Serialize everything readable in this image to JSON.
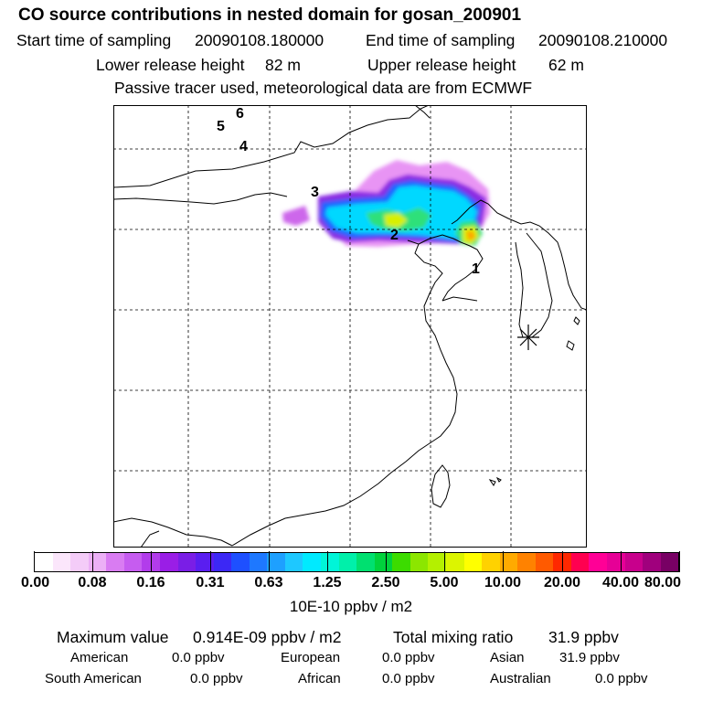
{
  "title": "CO  source contributions in nested domain for gosan_200901",
  "header": {
    "start_label": "Start time of sampling",
    "start_value": "20090108.180000",
    "end_label": "End time of sampling",
    "end_value": "20090108.210000",
    "lower_label": "Lower release height",
    "lower_value": "82 m",
    "upper_label": "Upper release height",
    "upper_value": "62 m",
    "note": "Passive tracer used, meteorological data are from ECMWF"
  },
  "map": {
    "release_point_labels": [
      "1",
      "2",
      "3",
      "4",
      "5",
      "6"
    ],
    "receptor_marker": "asterisk",
    "colors": {
      "coast": "#000000",
      "grid": "#000000",
      "plume_outer": "#e070f0",
      "plume_mid": "#8a2be2",
      "plume_blue": "#1e64ff",
      "plume_cyan": "#00d8ff",
      "plume_green": "#2ee07a",
      "plume_yellow": "#d8f000",
      "plume_orange": "#ffa500"
    }
  },
  "colorbar": {
    "colors": [
      "#ffffff",
      "#fbe6fb",
      "#f4ccf8",
      "#ecb0f6",
      "#d97cf2",
      "#c65cf0",
      "#b23ceb",
      "#9a1ee6",
      "#7a1ee6",
      "#5a1ef0",
      "#3c28f5",
      "#1e50ff",
      "#1e78ff",
      "#1ea0ff",
      "#1ec8ff",
      "#00eaff",
      "#00f5d8",
      "#00f0aa",
      "#00e070",
      "#00d23c",
      "#3cdc00",
      "#8ce600",
      "#b4f000",
      "#dcf500",
      "#ffff00",
      "#ffd200",
      "#ffaa00",
      "#ff8200",
      "#ff5a00",
      "#ff2800",
      "#ff0050",
      "#ff0096",
      "#e60096",
      "#c8008c",
      "#a0007d",
      "#780064"
    ],
    "tick_labels": [
      "0.00",
      "0.08",
      "0.16",
      "0.31",
      "0.63",
      "1.25",
      "2.50",
      "5.00",
      "10.00",
      "20.00",
      "40.00",
      "80.00"
    ],
    "unit": "10E-10 ppbv / m2"
  },
  "stats": {
    "max_label": "Maximum value",
    "max_value": "0.914E-09 ppbv / m2",
    "total_label": "Total mixing ratio",
    "total_value": "31.9 ppbv",
    "regions": [
      {
        "name": "American",
        "value": "0.0 ppbv"
      },
      {
        "name": "European",
        "value": "0.0 ppbv"
      },
      {
        "name": "Asian",
        "value": "31.9 ppbv"
      },
      {
        "name": "South American",
        "value": "0.0 ppbv"
      },
      {
        "name": "African",
        "value": "0.0 ppbv"
      },
      {
        "name": "Australian",
        "value": "0.0 ppbv"
      }
    ]
  }
}
